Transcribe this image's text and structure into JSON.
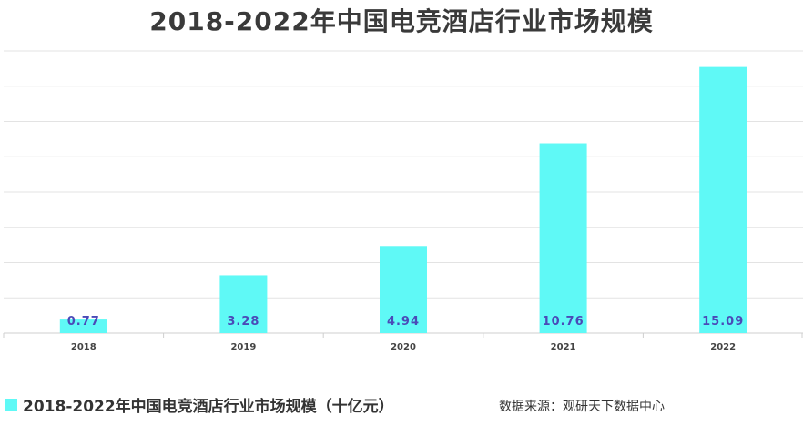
{
  "title": "2018-2022年中国电竞酒店行业市场规模",
  "source": "数据来源：观研天下数据中心",
  "colors": {
    "bar": "#5ff9f6",
    "label": "#4a4ab8",
    "grid": "#e3e3e3",
    "axis": "#cfcfcf"
  },
  "chart_data": {
    "type": "bar",
    "categories": [
      "2018",
      "2019",
      "2020",
      "2021",
      "2022"
    ],
    "series": [
      {
        "name": "2018-2022年中国电竞酒店行业市场规模（十亿元）",
        "values": [
          0.77,
          3.28,
          4.94,
          10.76,
          15.09
        ]
      }
    ],
    "data_labels": [
      "0.77",
      "3.28",
      "4.94",
      "10.76",
      "15.09"
    ],
    "ylim": [
      0,
      16
    ],
    "grid": true,
    "y_tick_labels_shown": false,
    "legend_position": "bottom-left"
  }
}
